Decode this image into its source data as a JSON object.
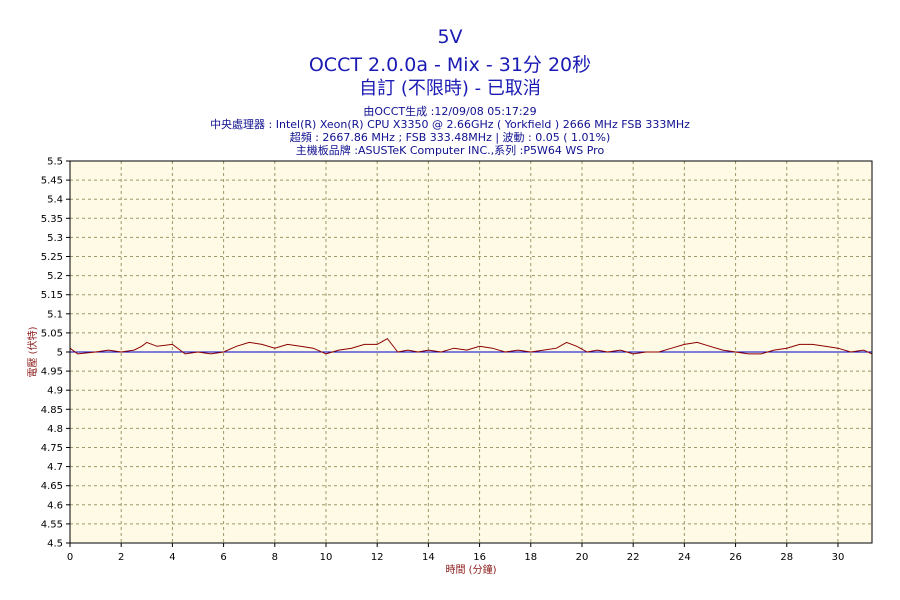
{
  "header": {
    "title": "5V",
    "subtitle": "OCCT 2.0.0a - Mix - 31分 20秒",
    "mode": "自訂 (不限時) - 已取消",
    "generated": "由OCCT生成 :12/09/08 05:17:29",
    "cpu": "中央處理器 : Intel(R) Xeon(R) CPU X3350 @ 2.66GHz ( Yorkfield ) 2666 MHz FSB 333MHz",
    "oc": "超頻 : 2667.86 MHz ; FSB 333.48MHz | 波動 : 0.05 ( 1.01%)",
    "board": "主機板品牌 :ASUSTeK Computer INC.,系列 :P5W64 WS Pro"
  },
  "colors": {
    "plot_bg": "#fffae6",
    "grid": "#9a9a6a",
    "series": "#8b0000",
    "reference": "#0000cc",
    "title": "#1a1ab4",
    "axis_label": "#8b1a1a"
  },
  "chart_data": {
    "type": "line",
    "xlabel": "時間 (分鐘)",
    "ylabel": "電壓 (伏特)",
    "xlim": [
      0,
      31.33
    ],
    "ylim": [
      4.5,
      5.5
    ],
    "xticks": [
      0,
      2,
      4,
      6,
      8,
      10,
      12,
      14,
      16,
      18,
      20,
      22,
      24,
      26,
      28,
      30
    ],
    "yticks": [
      "4.5",
      "4.55",
      "4.6",
      "4.65",
      "4.7",
      "4.75",
      "4.8",
      "4.85",
      "4.9",
      "4.95",
      "5",
      "5.05",
      "5.1",
      "5.15",
      "5.2",
      "5.25",
      "5.3",
      "5.35",
      "5.4",
      "5.45",
      "5.5"
    ],
    "grid": true,
    "reference_line": 5.0,
    "series": [
      {
        "x": [
          0,
          0.3,
          1.0,
          1.5,
          2.0,
          2.5,
          2.8,
          3.0,
          3.4,
          4.0,
          4.5,
          5.0,
          5.5,
          6.0,
          6.5,
          7.0,
          7.5,
          8.0,
          8.5,
          9.0,
          9.5,
          10.0,
          10.5,
          11.0,
          11.5,
          12.0,
          12.4,
          12.8,
          13.2,
          13.6,
          14.0,
          14.5,
          15.0,
          15.5,
          16.0,
          16.5,
          17.0,
          17.5,
          18.0,
          18.5,
          19.0,
          19.4,
          19.8,
          20.2,
          20.6,
          21.0,
          21.5,
          22.0,
          22.5,
          23.0,
          23.5,
          24.0,
          24.5,
          25.0,
          25.5,
          26.0,
          26.5,
          27.0,
          27.5,
          28.0,
          28.5,
          29.0,
          29.5,
          30.0,
          30.5,
          31.0,
          31.33
        ],
        "y": [
          5.01,
          4.995,
          5.0,
          5.005,
          5.0,
          5.005,
          5.015,
          5.025,
          5.015,
          5.02,
          4.995,
          5.0,
          4.995,
          5.0,
          5.015,
          5.025,
          5.02,
          5.01,
          5.02,
          5.015,
          5.01,
          4.995,
          5.005,
          5.01,
          5.02,
          5.02,
          5.035,
          5.0,
          5.005,
          5.0,
          5.005,
          5.0,
          5.01,
          5.005,
          5.015,
          5.01,
          5.0,
          5.005,
          5.0,
          5.005,
          5.01,
          5.025,
          5.015,
          5.0,
          5.005,
          5.0,
          5.005,
          4.995,
          5.0,
          5.0,
          5.01,
          5.02,
          5.025,
          5.015,
          5.005,
          5.0,
          4.995,
          4.995,
          5.005,
          5.01,
          5.02,
          5.02,
          5.015,
          5.01,
          5.0,
          5.005,
          4.995
        ]
      }
    ]
  }
}
